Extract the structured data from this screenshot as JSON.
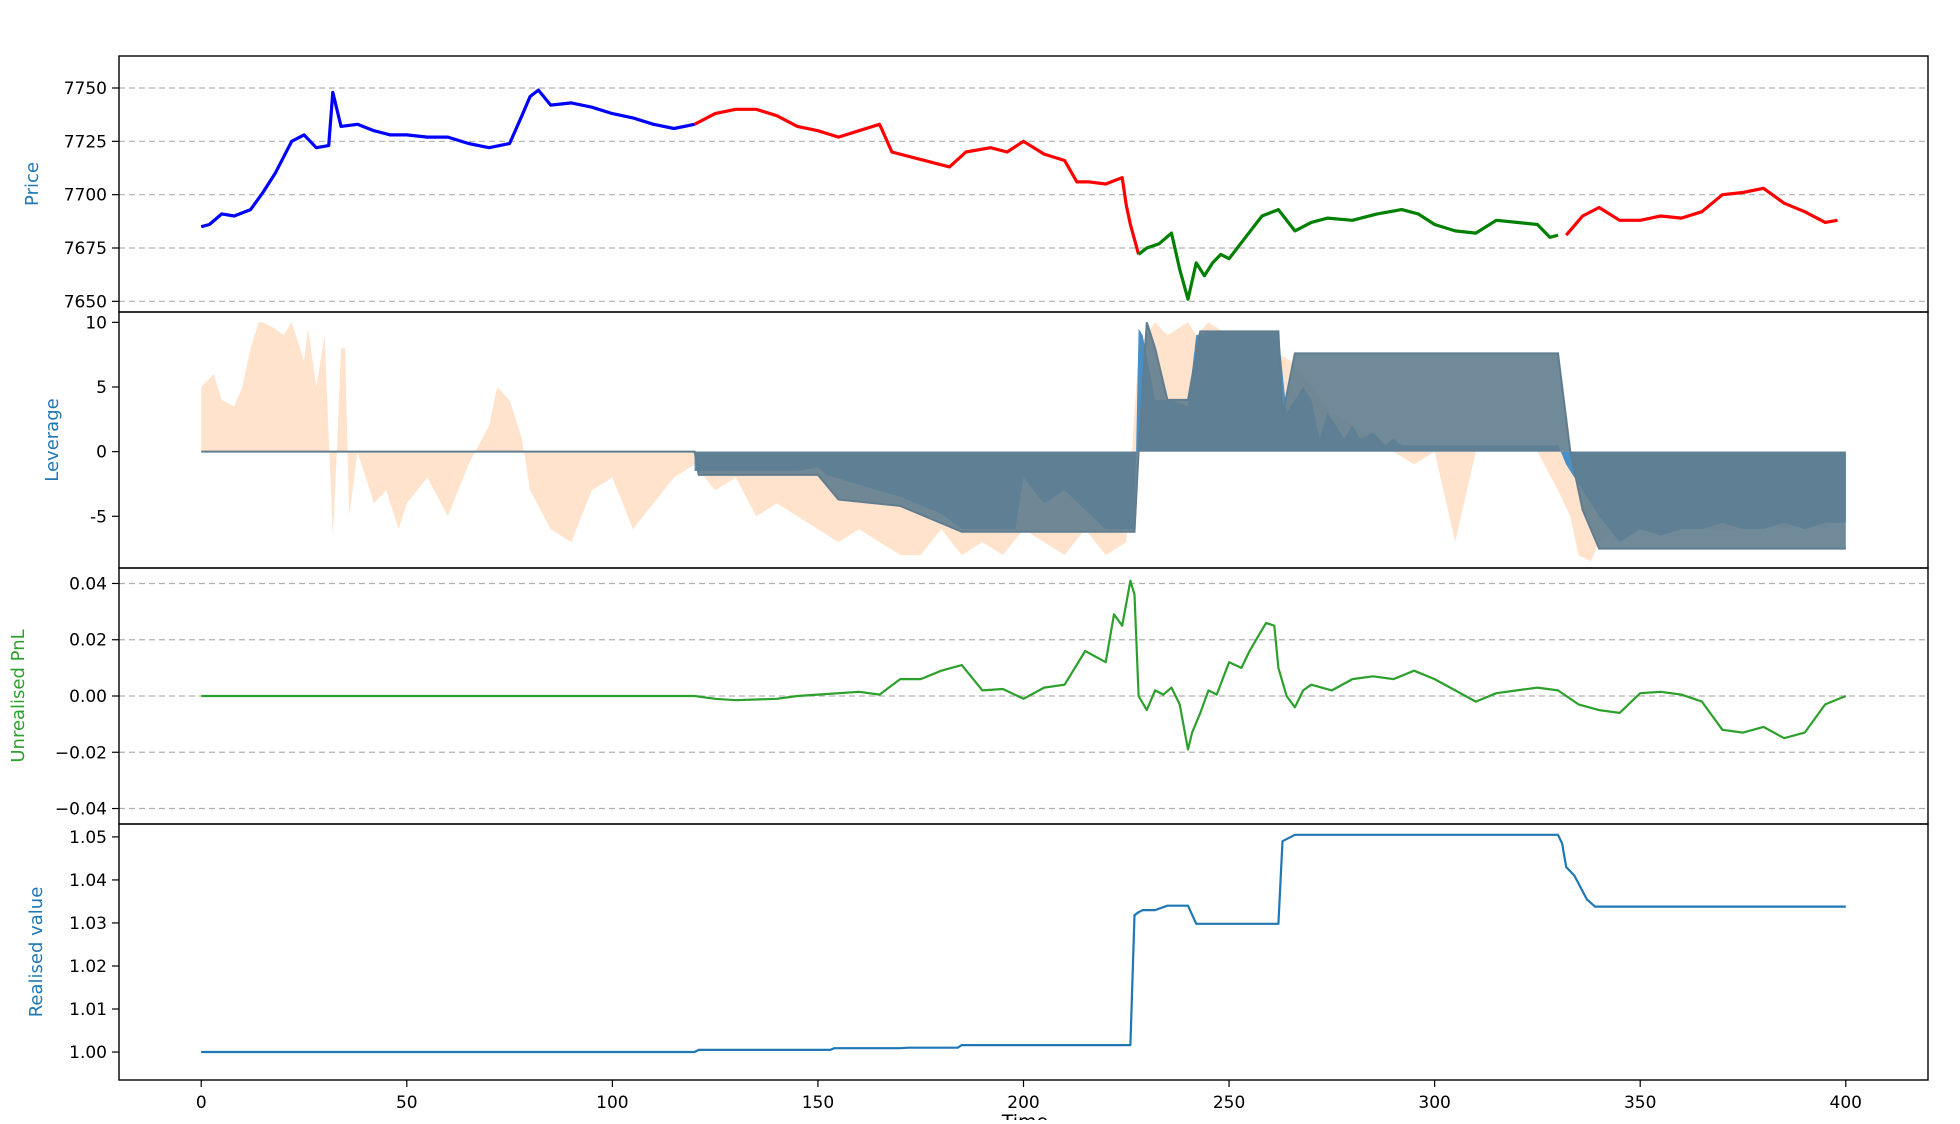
{
  "figure": {
    "xlabel": "Time",
    "xticks": [
      "0",
      "50",
      "100",
      "150",
      "200",
      "250",
      "300",
      "350",
      "400"
    ]
  },
  "colors": {
    "blue": "#0000ff",
    "red": "#ff0000",
    "green": "#008000",
    "leverage_line": "#607d8f",
    "leverage_fill": "#4a8ec4",
    "leverage_target": "#ffe3cc",
    "pnl": "#2ca02c",
    "realised": "#1f77b4",
    "label_blue": "#1f77b4",
    "label_green": "#2ca02c"
  },
  "chart_data": [
    {
      "type": "line",
      "ylabel": "Price",
      "xlim": [
        -20,
        420
      ],
      "ylim": [
        7645,
        7765
      ],
      "yticks": [
        7650,
        7675,
        7700,
        7725,
        7750
      ],
      "grid": true,
      "series": [
        {
          "color": "blue",
          "x": [
            0,
            2,
            5,
            8,
            12,
            15,
            18,
            22,
            25,
            28,
            31,
            32,
            34,
            38,
            42,
            46,
            50,
            55,
            60,
            65,
            70,
            75,
            78,
            80,
            82,
            85,
            90,
            95,
            100,
            105,
            110,
            115,
            120
          ],
          "y": [
            7685,
            7686,
            7691,
            7690,
            7693,
            7701,
            7710,
            7725,
            7728,
            7722,
            7723,
            7748,
            7732,
            7733,
            7730,
            7728,
            7728,
            7727,
            7727,
            7724,
            7722,
            7724,
            7737,
            7746,
            7749,
            7742,
            7743,
            7741,
            7738,
            7736,
            7733,
            7731,
            7733
          ]
        },
        {
          "color": "red",
          "x": [
            120,
            125,
            130,
            135,
            140,
            145,
            150,
            155,
            160,
            165,
            168,
            172,
            178,
            182,
            186,
            192,
            196,
            200,
            205,
            210,
            213,
            216,
            220,
            224,
            225,
            226,
            228
          ],
          "y": [
            7733,
            7738,
            7740,
            7740,
            7737,
            7732,
            7730,
            7727,
            7730,
            7733,
            7720,
            7718,
            7715,
            7713,
            7720,
            7722,
            7720,
            7725,
            7719,
            7716,
            7706,
            7706,
            7705,
            7708,
            7695,
            7686,
            7672
          ]
        },
        {
          "color": "green",
          "x": [
            228,
            230,
            233,
            236,
            238,
            240,
            242,
            244,
            246,
            248,
            250,
            254,
            258,
            262,
            266,
            270,
            274,
            280,
            286,
            292,
            296,
            300,
            305,
            310,
            315,
            320,
            325,
            328,
            330
          ],
          "y": [
            7672,
            7675,
            7677,
            7682,
            7665,
            7651,
            7668,
            7662,
            7668,
            7672,
            7670,
            7680,
            7690,
            7693,
            7683,
            7687,
            7689,
            7688,
            7691,
            7693,
            7691,
            7686,
            7683,
            7682,
            7688,
            7687,
            7686,
            7680,
            7681
          ]
        },
        {
          "color": "red",
          "x": [
            332,
            336,
            340,
            345,
            350,
            355,
            360,
            365,
            370,
            375,
            380,
            385,
            390,
            395,
            398
          ],
          "y": [
            7681,
            7690,
            7694,
            7688,
            7688,
            7690,
            7689,
            7692,
            7700,
            7701,
            7703,
            7696,
            7692,
            7687,
            7688
          ]
        }
      ]
    },
    {
      "type": "area",
      "ylabel": "Leverage",
      "xlim": [
        -20,
        420
      ],
      "ylim": [
        -9,
        10.8
      ],
      "yticks": [
        -5,
        0,
        5,
        10
      ],
      "grid": false,
      "series": [
        {
          "role": "target-band",
          "color": "leverage_target",
          "x": [
            0,
            3,
            5,
            8,
            10,
            12,
            14,
            15,
            18,
            20,
            22,
            24,
            25,
            26,
            28,
            30,
            32,
            33,
            34,
            35,
            36,
            38,
            40,
            42,
            45,
            48,
            50,
            55,
            60,
            65,
            70,
            72,
            75,
            78,
            80,
            85,
            90,
            95,
            100,
            105,
            110,
            115,
            120,
            125,
            130,
            135,
            140,
            145,
            150,
            155,
            160,
            165,
            170,
            175,
            180,
            185,
            190,
            195,
            200,
            205,
            210,
            215,
            220,
            225,
            228,
            232,
            235,
            240,
            242,
            245,
            250,
            255,
            260,
            265,
            270,
            275,
            280,
            285,
            290,
            295,
            300,
            305,
            310,
            315,
            320,
            325,
            330,
            333,
            335,
            338,
            340,
            345,
            350,
            355,
            360,
            365,
            370,
            375,
            380,
            385,
            390,
            395,
            400
          ],
          "y": [
            5,
            6,
            4,
            3.5,
            5,
            8,
            10,
            10,
            9.5,
            9,
            10,
            8,
            7,
            9.5,
            5,
            9,
            -6.5,
            0,
            8,
            8,
            -5,
            0,
            -2,
            -4,
            -3,
            -6,
            -4,
            -2,
            -5,
            -1,
            2,
            5,
            4,
            1,
            -3,
            -6,
            -7,
            -3,
            -2,
            -6,
            -4,
            -2,
            -1,
            -3,
            -2,
            -5,
            -4,
            -5,
            -6,
            -7,
            -6,
            -7,
            -8,
            -8,
            -6,
            -8,
            -7,
            -8,
            -6,
            -7,
            -8,
            -6,
            -8,
            -7,
            8,
            10,
            9,
            10,
            9,
            10,
            9,
            9,
            8,
            7,
            5,
            3,
            2,
            1,
            0,
            -1,
            0,
            -7,
            0,
            0,
            0,
            0,
            -3,
            -5,
            -8,
            -8.5,
            -7,
            -6,
            -6,
            -6,
            -6,
            -6,
            -6,
            -6,
            -5,
            -6,
            -5,
            -6,
            -5
          ]
        },
        {
          "role": "leverage-fill",
          "color": "leverage_fill",
          "x": [
            120,
            145,
            150,
            152,
            170,
            180,
            185,
            198,
            200,
            205,
            210,
            215,
            220,
            227,
            228,
            229,
            232,
            234,
            236,
            240,
            242,
            246,
            250,
            253,
            258,
            262,
            264,
            268,
            270,
            272,
            274,
            276,
            278,
            280,
            282,
            285,
            288,
            290,
            292,
            295,
            298,
            300,
            305,
            310,
            315,
            320,
            325,
            330,
            332,
            336,
            338,
            340,
            345,
            350,
            355,
            360,
            365,
            370,
            375,
            380,
            385,
            390,
            395,
            400
          ],
          "y": [
            -1.5,
            -1.5,
            -1.2,
            -1.8,
            -3.5,
            -4.8,
            -6,
            -6,
            -2,
            -4,
            -3,
            -4.5,
            -6,
            -6,
            9.5,
            9,
            4,
            4,
            4,
            3.5,
            9,
            9.3,
            9.3,
            9.3,
            9.3,
            9.3,
            3,
            5,
            4,
            1,
            3,
            2,
            1,
            2,
            1,
            1.5,
            0.5,
            1,
            0.5,
            0.5,
            0.5,
            0.5,
            0.5,
            0.5,
            0.5,
            0.5,
            0.5,
            0.5,
            -1,
            -3,
            -4,
            -5,
            -7,
            -6,
            -6.5,
            -6,
            -6,
            -5.5,
            -6,
            -6,
            -5.5,
            -6,
            -5.5,
            -5.5
          ]
        },
        {
          "role": "leverage-line",
          "color": "leverage_line",
          "x": [
            0,
            120,
            121,
            150,
            155,
            170,
            185,
            227,
            228,
            230,
            232,
            235,
            240,
            243,
            262,
            263,
            266,
            330,
            333,
            336,
            340,
            400
          ],
          "y": [
            0,
            0,
            -1.8,
            -1.8,
            -3.7,
            -4.2,
            -6.2,
            -6.2,
            0,
            10,
            8,
            4,
            4,
            9.3,
            9.3,
            2.8,
            7.6,
            7.6,
            0,
            -4.5,
            -7.5,
            -7.5
          ]
        }
      ]
    },
    {
      "type": "line",
      "ylabel": "Unrealised PnL",
      "xlim": [
        -20,
        420
      ],
      "ylim": [
        -0.0455,
        0.0455
      ],
      "yticks": [
        -0.04,
        -0.02,
        0.0,
        0.02,
        0.04
      ],
      "ytick_labels": [
        "−0.04",
        "−0.02",
        "0.00",
        "0.02",
        "0.04"
      ],
      "grid": true,
      "series": [
        {
          "color": "pnl",
          "x": [
            0,
            120,
            125,
            130,
            140,
            145,
            150,
            160,
            165,
            170,
            175,
            180,
            185,
            190,
            195,
            200,
            205,
            210,
            215,
            220,
            222,
            224,
            226,
            227,
            228,
            230,
            232,
            234,
            236,
            238,
            240,
            241,
            243,
            245,
            247,
            250,
            253,
            255,
            257,
            259,
            261,
            262,
            264,
            266,
            268,
            270,
            275,
            280,
            285,
            290,
            295,
            300,
            305,
            310,
            315,
            320,
            325,
            330,
            335,
            340,
            345,
            350,
            355,
            360,
            365,
            370,
            375,
            380,
            385,
            390,
            395,
            400
          ],
          "y": [
            0,
            0,
            -0.001,
            -0.0015,
            -0.001,
            0,
            0.0005,
            0.0015,
            0.0005,
            0.006,
            0.006,
            0.009,
            0.011,
            0.002,
            0.0025,
            -0.001,
            0.003,
            0.004,
            0.016,
            0.012,
            0.029,
            0.025,
            0.041,
            0.036,
            0,
            -0.005,
            0.002,
            0.0005,
            0.003,
            -0.003,
            -0.019,
            -0.013,
            -0.006,
            0.002,
            0.0005,
            0.012,
            0.01,
            0.016,
            0.021,
            0.026,
            0.025,
            0.01,
            0,
            -0.004,
            0.002,
            0.004,
            0.002,
            0.006,
            0.007,
            0.006,
            0.009,
            0.006,
            0.002,
            -0.002,
            0.001,
            0.002,
            0.003,
            0.002,
            -0.003,
            -0.005,
            -0.006,
            0.001,
            0.0015,
            0.0005,
            -0.002,
            -0.012,
            -0.013,
            -0.011,
            -0.015,
            -0.013,
            -0.003,
            0
          ]
        }
      ]
    },
    {
      "type": "line",
      "ylabel": "Realised value",
      "xlim": [
        -20,
        420
      ],
      "ylim": [
        0.9935,
        1.053
      ],
      "yticks": [
        1.0,
        1.01,
        1.02,
        1.03,
        1.04,
        1.05
      ],
      "ytick_labels": [
        "1.00",
        "1.01",
        "1.02",
        "1.03",
        "1.04",
        "1.05"
      ],
      "grid": false,
      "series": [
        {
          "color": "realised",
          "x": [
            0,
            120,
            121,
            153,
            154,
            170,
            172,
            184,
            185,
            226,
            227,
            228,
            229,
            232,
            235,
            240,
            242,
            243,
            262,
            263,
            266,
            330,
            331,
            332,
            334,
            337,
            339,
            340,
            400
          ],
          "y": [
            1.0,
            1.0,
            1.0005,
            1.0005,
            1.0009,
            1.0009,
            1.001,
            1.001,
            1.0016,
            1.0016,
            1.0318,
            1.0325,
            1.033,
            1.033,
            1.034,
            1.034,
            1.0298,
            1.0298,
            1.0298,
            1.049,
            1.0505,
            1.0505,
            1.0485,
            1.043,
            1.041,
            1.0355,
            1.0338,
            1.0338,
            1.0338
          ]
        }
      ]
    }
  ]
}
